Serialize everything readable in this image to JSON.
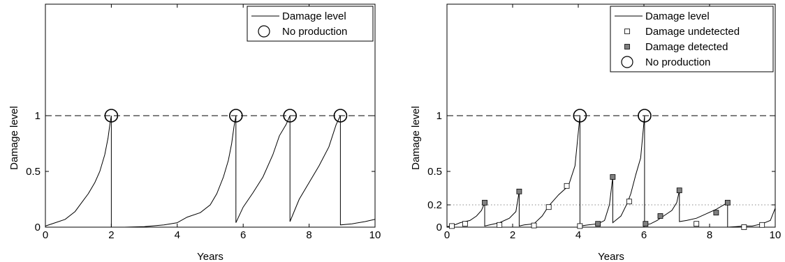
{
  "chart_data": [
    {
      "type": "line",
      "xlabel": "Years",
      "ylabel": "Damage level",
      "xlim": [
        0,
        10
      ],
      "ylim": [
        0,
        2
      ],
      "xticks": [
        0,
        2,
        4,
        6,
        8,
        10
      ],
      "xtick_labels": [
        "0",
        "2",
        "4",
        "6",
        "8",
        "10"
      ],
      "yticks": [
        0,
        0.5,
        1
      ],
      "ytick_labels": [
        "0",
        "0.5",
        "1"
      ],
      "grid": false,
      "legend_position": "top-right",
      "legend": [
        "Damage level",
        "No production"
      ],
      "threshold_lines": [
        {
          "y": 1.0,
          "style": "dashed"
        }
      ],
      "series": [
        {
          "name": "Damage level",
          "x": [
            0,
            0.3,
            0.6,
            0.9,
            1.1,
            1.3,
            1.5,
            1.65,
            1.8,
            1.9,
            1.96,
            2.0,
            2.0,
            2.4,
            3.0,
            3.6,
            4.0,
            4.3,
            4.7,
            5.0,
            5.2,
            5.4,
            5.55,
            5.65,
            5.72,
            5.78,
            5.78,
            6.0,
            6.3,
            6.6,
            6.9,
            7.1,
            7.3,
            7.42,
            7.42,
            7.7,
            8.0,
            8.3,
            8.6,
            8.82,
            8.95,
            8.95,
            9.3,
            9.7,
            10.0
          ],
          "y": [
            0.01,
            0.04,
            0.07,
            0.14,
            0.22,
            0.3,
            0.4,
            0.5,
            0.65,
            0.8,
            0.93,
            1.0,
            0.0,
            0.0,
            0.005,
            0.02,
            0.04,
            0.09,
            0.13,
            0.2,
            0.3,
            0.45,
            0.6,
            0.75,
            0.9,
            1.0,
            0.04,
            0.18,
            0.31,
            0.45,
            0.65,
            0.82,
            0.92,
            1.0,
            0.05,
            0.25,
            0.4,
            0.55,
            0.72,
            0.92,
            1.0,
            0.02,
            0.03,
            0.05,
            0.07
          ]
        },
        {
          "name": "No production",
          "x": [
            2.0,
            5.78,
            7.42,
            8.95
          ],
          "y": [
            1.0,
            1.0,
            1.0,
            1.0
          ]
        }
      ]
    },
    {
      "type": "line",
      "xlabel": "Years",
      "ylabel": "Damage level",
      "xlim": [
        0,
        10
      ],
      "ylim": [
        0,
        2
      ],
      "xticks": [
        0,
        2,
        4,
        6,
        8,
        10
      ],
      "xtick_labels": [
        "0",
        "2",
        "4",
        "6",
        "8",
        "10"
      ],
      "yticks": [
        0,
        0.2,
        0.5,
        1
      ],
      "ytick_labels": [
        "0",
        "0.2",
        "0.5",
        "1"
      ],
      "grid": false,
      "legend_position": "top-right",
      "legend": [
        "Damage level",
        "Damage undetected",
        "Damage detected",
        "No production"
      ],
      "threshold_lines": [
        {
          "y": 1.0,
          "style": "dashed"
        },
        {
          "y": 0.2,
          "style": "dotted"
        }
      ],
      "series": [
        {
          "name": "Damage level",
          "x": [
            0,
            0.15,
            0.4,
            0.7,
            0.9,
            1.05,
            1.15,
            1.15,
            1.3,
            1.6,
            1.9,
            2.1,
            2.2,
            2.2,
            2.35,
            2.65,
            2.9,
            3.1,
            3.4,
            3.7,
            3.9,
            4.05,
            4.05,
            4.3,
            4.6,
            4.8,
            4.95,
            5.05,
            5.05,
            5.3,
            5.5,
            5.6,
            5.75,
            5.9,
            6.02,
            6.02,
            6.2,
            6.4,
            6.6,
            6.85,
            7.0,
            7.08,
            7.08,
            7.3,
            7.6,
            7.9,
            8.2,
            8.55,
            8.55,
            8.8,
            9.05,
            9.3,
            9.6,
            9.85,
            10.0
          ],
          "y": [
            0.005,
            0.01,
            0.04,
            0.06,
            0.1,
            0.15,
            0.22,
            0.01,
            0.02,
            0.04,
            0.08,
            0.14,
            0.32,
            0.01,
            0.02,
            0.03,
            0.1,
            0.19,
            0.29,
            0.37,
            0.55,
            1.0,
            0.01,
            0.02,
            0.03,
            0.06,
            0.2,
            0.45,
            0.04,
            0.1,
            0.22,
            0.3,
            0.47,
            0.62,
            1.0,
            0.02,
            0.03,
            0.06,
            0.1,
            0.15,
            0.22,
            0.33,
            0.05,
            0.06,
            0.08,
            0.12,
            0.16,
            0.22,
            0.0,
            0.005,
            0.01,
            0.01,
            0.03,
            0.06,
            0.17
          ]
        },
        {
          "name": "Damage undetected",
          "x": [
            0.15,
            0.55,
            1.6,
            2.65,
            3.1,
            3.65,
            4.05,
            5.55,
            7.6,
            9.05,
            9.6
          ],
          "y": [
            0.01,
            0.03,
            0.02,
            0.015,
            0.18,
            0.37,
            0.01,
            0.23,
            0.03,
            0.0,
            0.02
          ]
        },
        {
          "name": "Damage detected",
          "x": [
            1.15,
            2.2,
            4.6,
            5.05,
            6.05,
            6.5,
            7.08,
            8.2,
            8.55
          ],
          "y": [
            0.22,
            0.32,
            0.03,
            0.45,
            0.03,
            0.1,
            0.33,
            0.13,
            0.22
          ]
        },
        {
          "name": "No production",
          "x": [
            4.05,
            6.02
          ],
          "y": [
            1.0,
            1.0
          ]
        }
      ]
    }
  ]
}
